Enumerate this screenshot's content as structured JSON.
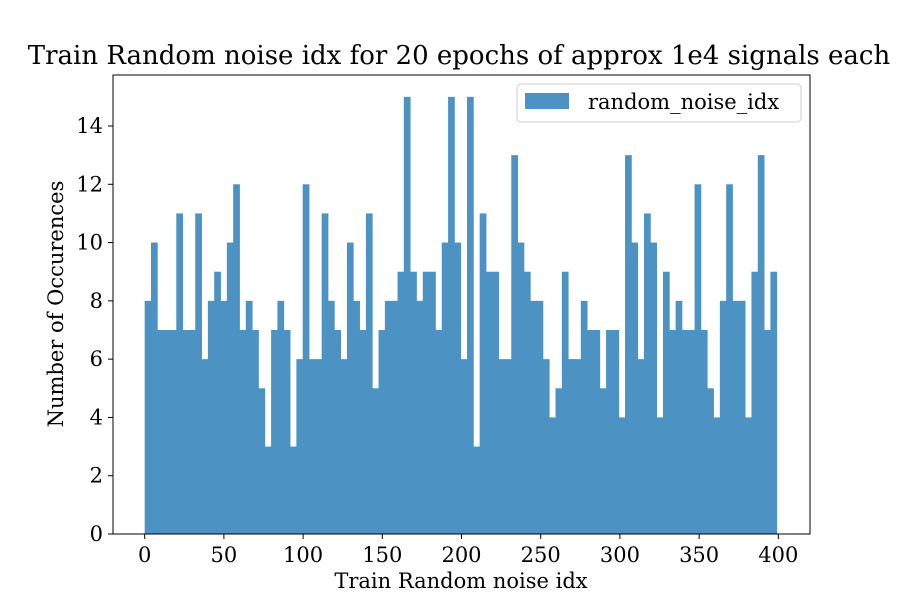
{
  "chart_data": {
    "type": "bar",
    "title": "Train Random noise idx for 20 epochs of approx 1e4 signals each",
    "xlabel": "Train Random noise idx",
    "ylabel": "Number of Occurences",
    "legend": {
      "label": "random_noise_idx",
      "placement": "top-right"
    },
    "bar_color": "#4c92c3",
    "grid": false,
    "xlim": [
      -20,
      420
    ],
    "ylim": [
      0,
      15.75
    ],
    "xticks": [
      0,
      50,
      100,
      150,
      200,
      250,
      300,
      350,
      400
    ],
    "yticks": [
      0,
      2,
      4,
      6,
      8,
      10,
      12,
      14
    ],
    "bin_start": 0,
    "bin_width": 3.99,
    "values": [
      8,
      10,
      7,
      7,
      7,
      11,
      7,
      7,
      11,
      6,
      8,
      9,
      8,
      10,
      12,
      7,
      8,
      7,
      5,
      3,
      7,
      8,
      7,
      3,
      6,
      12,
      6,
      6,
      11,
      8,
      7,
      6,
      10,
      8,
      7,
      11,
      5,
      7,
      8,
      8,
      9,
      15,
      9,
      8,
      9,
      9,
      7,
      10,
      15,
      10,
      6,
      15,
      3,
      11,
      9,
      9,
      6,
      6,
      13,
      10,
      9,
      8,
      8,
      6,
      4,
      5,
      9,
      6,
      6,
      8,
      7,
      7,
      5,
      7,
      7,
      4,
      13,
      10,
      6,
      11,
      10,
      4,
      9,
      7,
      8,
      7,
      7,
      12,
      7,
      5,
      4,
      8,
      12,
      8,
      8,
      4,
      9,
      13,
      7,
      9
    ]
  }
}
